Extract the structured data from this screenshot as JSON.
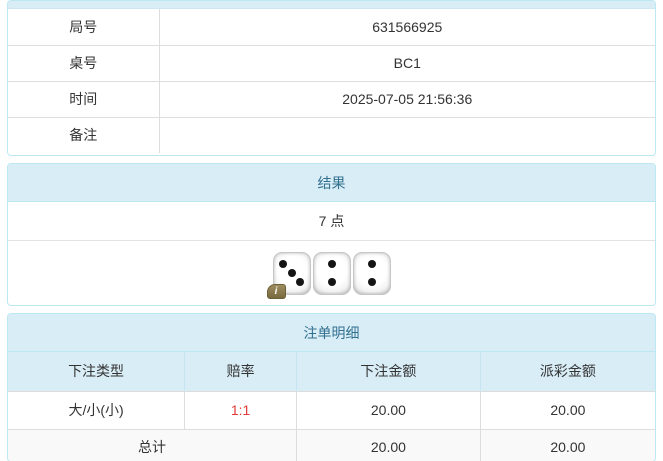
{
  "game_info": {
    "rows": [
      {
        "label": "局号",
        "value": "631566925"
      },
      {
        "label": "桌号",
        "value": "BC1"
      },
      {
        "label": "时间",
        "value": "2025-07-05 21:56:36"
      },
      {
        "label": "备注",
        "value": ""
      }
    ]
  },
  "result_panel": {
    "title": "结果",
    "points": "7 点",
    "dice": [
      3,
      2,
      2
    ],
    "info_icon": "i"
  },
  "bets_panel": {
    "title": "注单明细",
    "columns": [
      "下注类型",
      "赔率",
      "下注金额",
      "派彩金额"
    ],
    "rows": [
      {
        "type": "大/小(小)",
        "odds": "1:1",
        "bet_amount": "20.00",
        "payout_amount": "20.00"
      }
    ],
    "total": {
      "label": "总计",
      "bet_amount": "20.00",
      "payout_amount": "20.00"
    }
  },
  "colors": {
    "panel_border": "#bce8f1",
    "panel_header_bg": "#d9edf7",
    "panel_header_text": "#31708f",
    "row_border": "#dddddd",
    "odds_red": "#e23b3b",
    "total_row_bg": "#f9f9f9",
    "die_pip": "#141414",
    "info_badge_bg": "#79693f"
  }
}
